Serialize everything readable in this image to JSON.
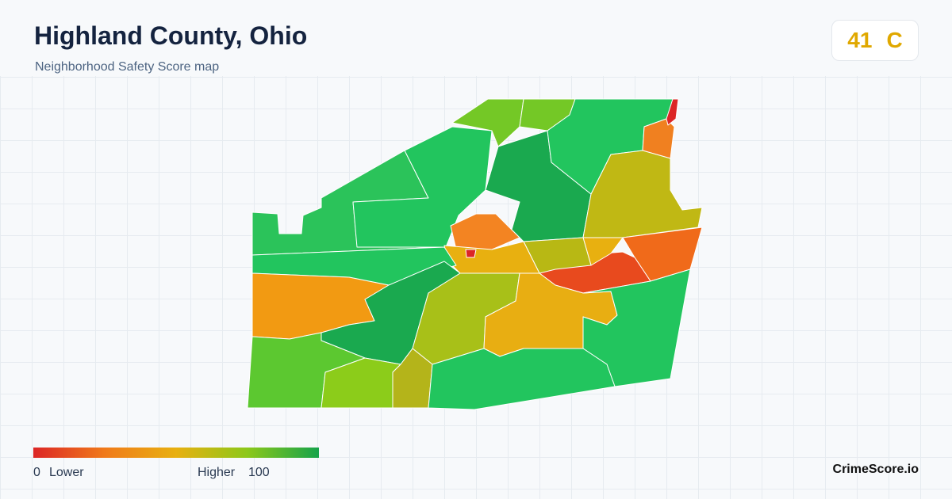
{
  "header": {
    "title": "Highland County, Ohio",
    "subtitle": "Neighborhood Safety Score map"
  },
  "score": {
    "value": 41,
    "grade": "C"
  },
  "legend": {
    "min": 0,
    "min_label": "Lower",
    "max_label": "Higher",
    "max": 100
  },
  "brand": "CrimeScore.io"
}
